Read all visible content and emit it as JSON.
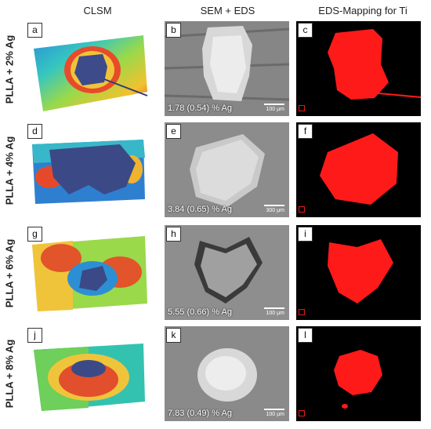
{
  "columns": [
    "CLSM",
    "SEM + EDS",
    "EDS-Mapping for Ti"
  ],
  "rows": [
    {
      "label": "PLLA + 2% Ag",
      "letters": [
        "a",
        "b",
        "c"
      ],
      "ag_value": "1.78 (0.54) % Ag",
      "scale": "100 µm"
    },
    {
      "label": "PLLA + 4% Ag",
      "letters": [
        "d",
        "e",
        "f"
      ],
      "ag_value": "3.84 (0.65) % Ag",
      "scale": "300 µm"
    },
    {
      "label": "PLLA + 6% Ag",
      "letters": [
        "g",
        "h",
        "i"
      ],
      "ag_value": "5.55 (0.66) % Ag",
      "scale": "100 µm"
    },
    {
      "label": "PLLA + 8% Ag",
      "letters": [
        "j",
        "k",
        "l"
      ],
      "ag_value": "7.83 (0.49) % Ag",
      "scale": "100 µm"
    }
  ],
  "colors": {
    "eds_red": "#ff1a1a",
    "eds_bg": "#000000",
    "sem_gray": "#8a8a8a"
  }
}
